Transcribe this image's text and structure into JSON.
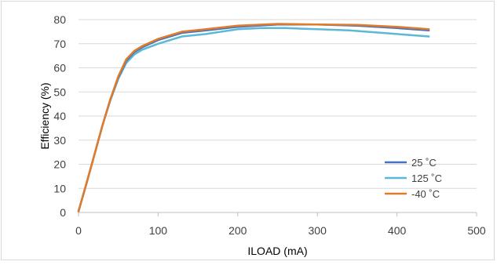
{
  "chart_data": {
    "type": "line",
    "title": "",
    "xlabel": "ILOAD (mA)",
    "ylabel": "Efficiency (%)",
    "xlim": [
      0,
      500
    ],
    "ylim": [
      0,
      80
    ],
    "x_ticks": [
      "0",
      "100",
      "200",
      "300",
      "400",
      "500"
    ],
    "y_ticks": [
      "0",
      "10",
      "20",
      "30",
      "40",
      "50",
      "60",
      "70",
      "80"
    ],
    "grid": "horizontal",
    "legend_position": "bottom-right",
    "series": [
      {
        "name": "25 ˚C",
        "color": "#4472c4",
        "points": [
          [
            0,
            0.5
          ],
          [
            10,
            12
          ],
          [
            20,
            24
          ],
          [
            30,
            36
          ],
          [
            40,
            47
          ],
          [
            50,
            56
          ],
          [
            60,
            63
          ],
          [
            70,
            66.5
          ],
          [
            80,
            68.5
          ],
          [
            100,
            71.5
          ],
          [
            130,
            74.5
          ],
          [
            160,
            75.5
          ],
          [
            200,
            77
          ],
          [
            250,
            78
          ],
          [
            300,
            78
          ],
          [
            350,
            77.5
          ],
          [
            400,
            76.5
          ],
          [
            440,
            75.5
          ]
        ]
      },
      {
        "name": "125 ˚C",
        "color": "#5bb8d6",
        "points": [
          [
            0,
            0.5
          ],
          [
            10,
            12
          ],
          [
            20,
            24
          ],
          [
            30,
            36
          ],
          [
            40,
            46.5
          ],
          [
            50,
            55.5
          ],
          [
            60,
            62
          ],
          [
            70,
            65.5
          ],
          [
            80,
            67.5
          ],
          [
            100,
            70
          ],
          [
            130,
            73
          ],
          [
            160,
            74
          ],
          [
            200,
            76
          ],
          [
            230,
            76.5
          ],
          [
            260,
            76.5
          ],
          [
            300,
            76
          ],
          [
            340,
            75.5
          ],
          [
            400,
            74
          ],
          [
            440,
            73
          ]
        ]
      },
      {
        "name": "-40 ˚C",
        "color": "#e07b2a",
        "points": [
          [
            0,
            0.5
          ],
          [
            10,
            12
          ],
          [
            20,
            24
          ],
          [
            30,
            36
          ],
          [
            40,
            47
          ],
          [
            50,
            56.5
          ],
          [
            60,
            63.5
          ],
          [
            70,
            67
          ],
          [
            80,
            69
          ],
          [
            100,
            72
          ],
          [
            130,
            75
          ],
          [
            160,
            76
          ],
          [
            200,
            77.5
          ],
          [
            250,
            78.2
          ],
          [
            300,
            78
          ],
          [
            350,
            77.8
          ],
          [
            400,
            77
          ],
          [
            440,
            76
          ]
        ]
      }
    ]
  }
}
